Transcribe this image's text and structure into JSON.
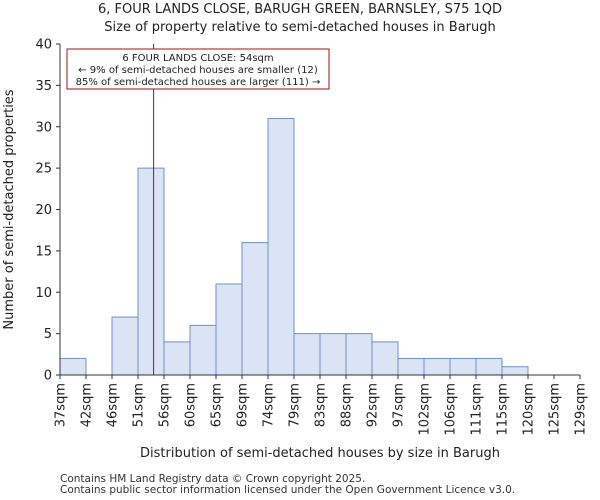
{
  "title_line1": "6, FOUR LANDS CLOSE, BARUGH GREEN, BARNSLEY, S75 1QD",
  "title_line2": "Size of property relative to semi-detached houses in Barugh",
  "footer_line1": "Contains HM Land Registry data © Crown copyright 2025.",
  "footer_line2": "Contains public sector information licensed under the Open Government Licence v3.0.",
  "colors": {
    "bar_fill": "#dbe4f4",
    "bar_stroke": "#6f8fc8",
    "marker": "#a01010",
    "axis": "#333333"
  },
  "chart_data": {
    "type": "bar",
    "title": "Size of property relative to semi-detached houses in Barugh",
    "xlabel": "Distribution of semi-detached houses by size in Barugh",
    "ylabel": "Number of semi-detached properties",
    "ylim": [
      0,
      40
    ],
    "yticks": [
      "0",
      "5",
      "10",
      "15",
      "20",
      "25",
      "30",
      "35",
      "40"
    ],
    "bin_edges": [
      37,
      42,
      46,
      51,
      56,
      60,
      65,
      69,
      74,
      79,
      83,
      88,
      92,
      97,
      102,
      106,
      111,
      115,
      120,
      125,
      129
    ],
    "tick_labels": [
      "37sqm",
      "42sqm",
      "46sqm",
      "51sqm",
      "56sqm",
      "60sqm",
      "65sqm",
      "69sqm",
      "74sqm",
      "79sqm",
      "83sqm",
      "88sqm",
      "92sqm",
      "97sqm",
      "102sqm",
      "106sqm",
      "111sqm",
      "115sqm",
      "120sqm",
      "125sqm",
      "129sqm"
    ],
    "values": [
      2,
      0,
      7,
      25,
      4,
      6,
      11,
      16,
      31,
      5,
      5,
      5,
      4,
      2,
      2,
      2,
      2,
      1,
      0,
      0
    ],
    "marker_value": 54,
    "annotation": [
      "6 FOUR LANDS CLOSE: 54sqm",
      "← 9% of semi-detached houses are smaller (12)",
      "85% of semi-detached houses are larger (111) →"
    ]
  }
}
